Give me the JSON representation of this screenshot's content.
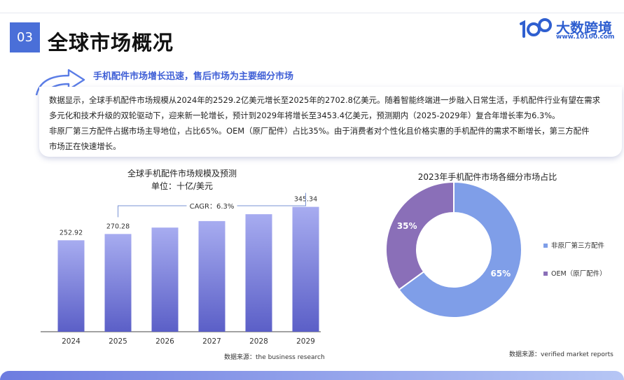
{
  "header": {
    "section_number": "03",
    "title": "全球市场概况",
    "logo_text": "大数跨境",
    "logo_url": "www.10100.com"
  },
  "subtitle": "手机配件市场增长迅速，售后市场为主要细分市场",
  "body_text": {
    "line1": "数据显示，全球手机配件市场规模从2024年的2529.2亿美元增长至2025年的2702.8亿美元。随着智能终端进一步融入日常生活，手机配件行业有望在需求",
    "line2": "多元化和技术升级的双轮驱动下，迎来新一轮增长，预计到2029年将增长至3453.4亿美元，预测期内（2025-2029年）复合年增长率为6.3%。",
    "line3": "非原厂第三方配件占据市场主导地位，占比65%。OEM（原厂配件）占比35%。由于消费者对个性化且价格实惠的手机配件的需求不断增长，第三方配件",
    "line4": "市场正在快速增长。"
  },
  "chart_data": [
    {
      "type": "bar",
      "title": "全球手机配件市场规模及预测",
      "subtitle": "单位：十亿/美元",
      "categories": [
        "2024",
        "2025",
        "2026",
        "2027",
        "2028",
        "2029"
      ],
      "values": [
        252.92,
        270.28,
        288.0,
        306.0,
        325.0,
        345.34
      ],
      "data_labels": [
        "252.92",
        "270.28",
        "",
        "",
        "",
        "345.34"
      ],
      "annotation": "CAGR：6.3%",
      "source": "数据来源：the business research",
      "ylim": [
        0,
        360
      ],
      "color_top": "#a7acf0",
      "color_bottom": "#5b5fc7"
    },
    {
      "type": "pie",
      "title": "2023年手机配件市场各细分市场占比",
      "slices": [
        {
          "label": "非原厂第三方配件",
          "value": 65,
          "display": "65%",
          "color": "#7f9ee8"
        },
        {
          "label": "OEM（原厂配件）",
          "value": 35,
          "display": "35%",
          "color": "#8a6fb8"
        }
      ],
      "source": "数据来源：verified market reports"
    }
  ]
}
